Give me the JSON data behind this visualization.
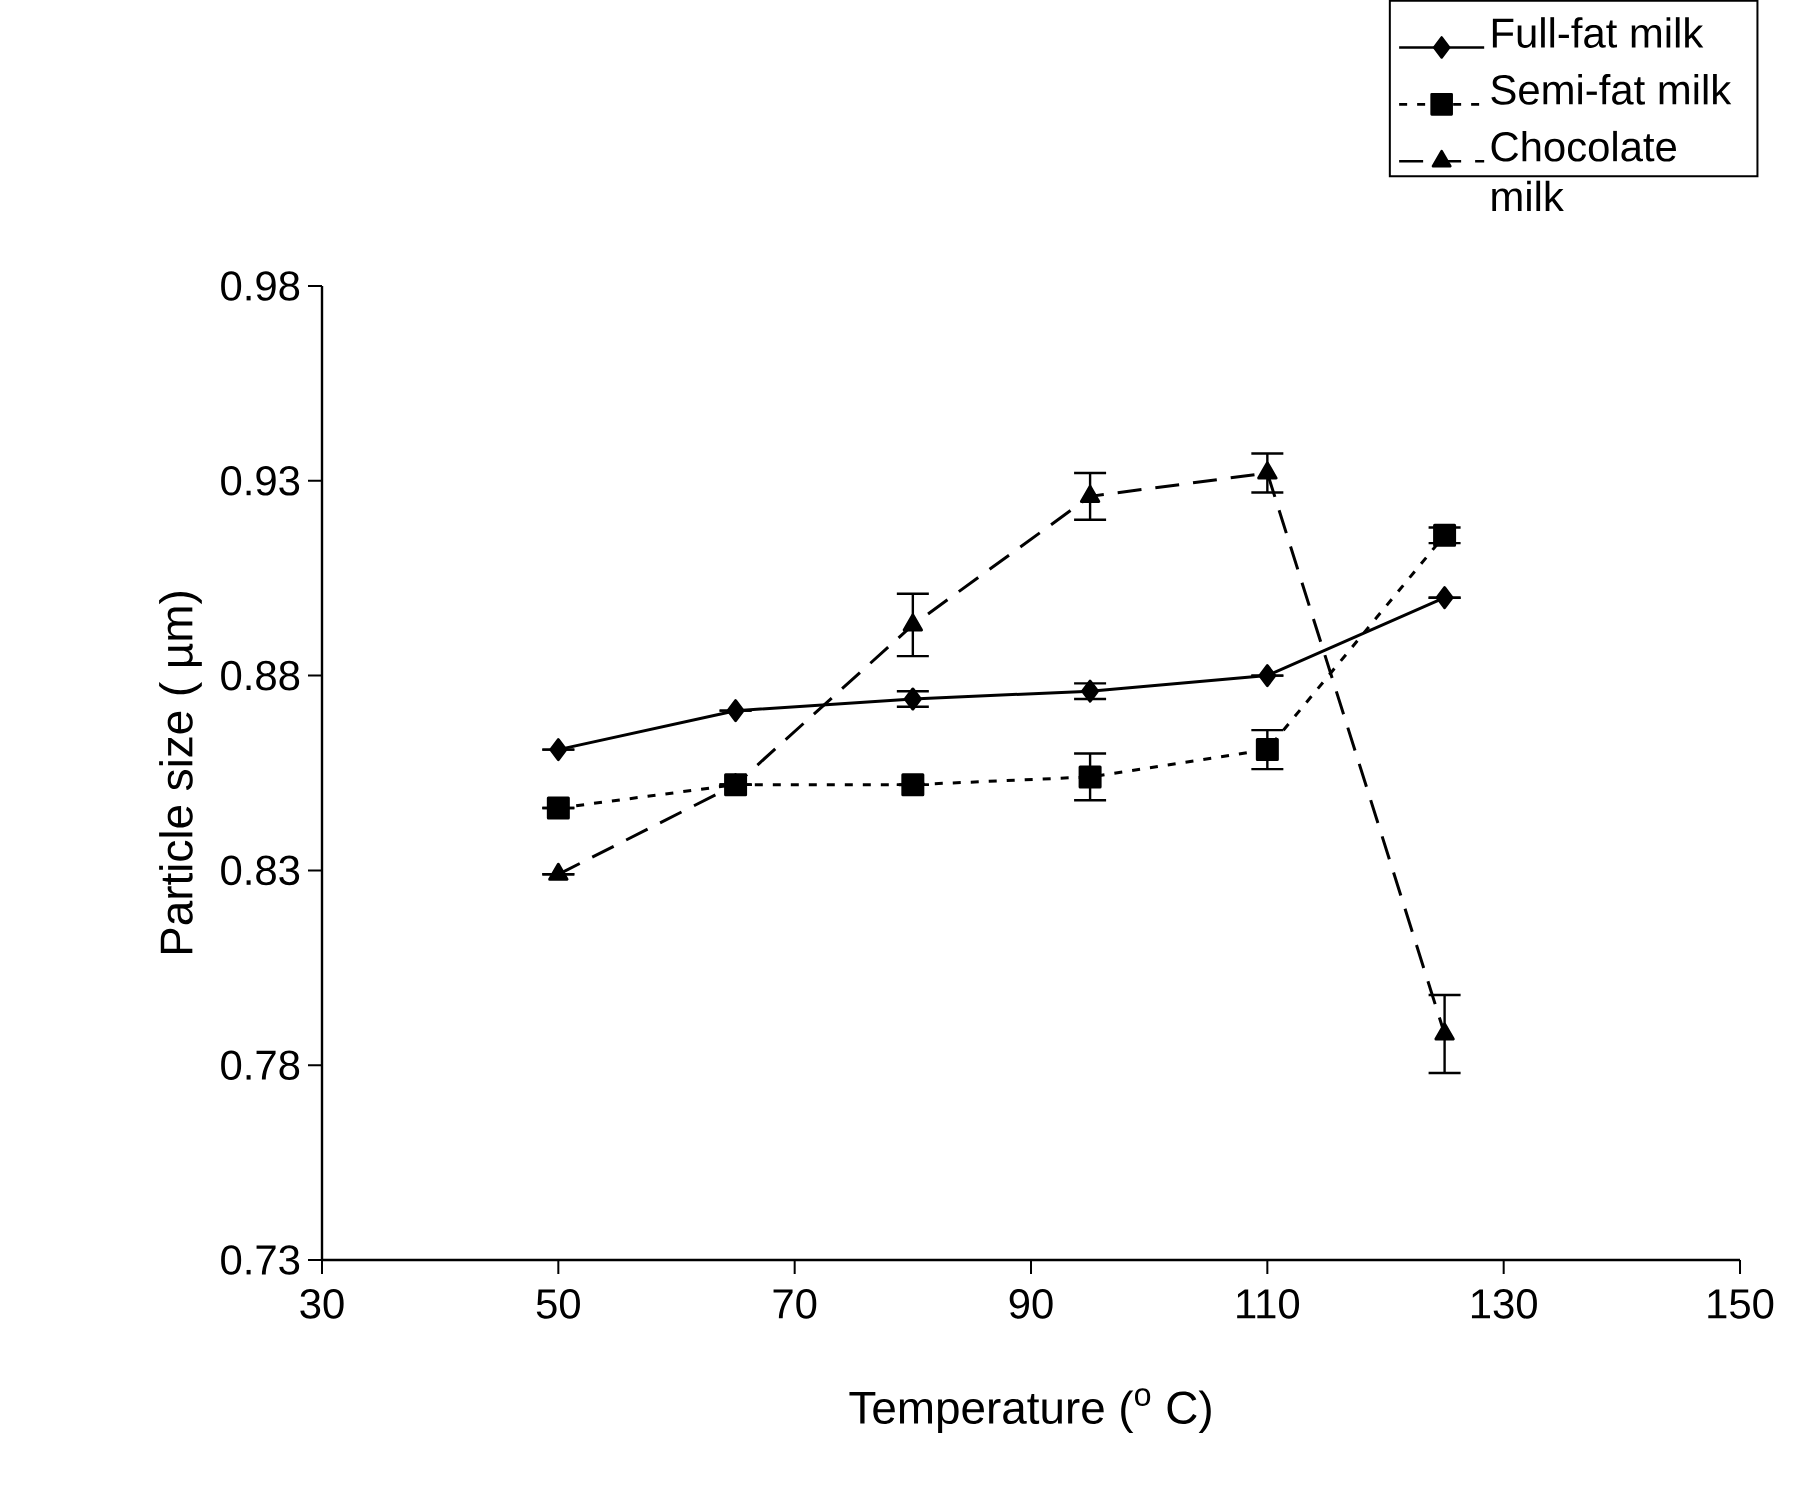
{
  "chart_data": {
    "type": "line",
    "xlabel": "Temperature ($^{o}$ C)",
    "ylabel": "Particle size ( µm)",
    "x": [
      50,
      65,
      80,
      95,
      110,
      125
    ],
    "xlim": [
      30,
      150
    ],
    "xticks": [
      30,
      50,
      70,
      90,
      110,
      130,
      150
    ],
    "ylim": [
      0.73,
      0.98
    ],
    "yticks": [
      0.73,
      0.78,
      0.83,
      0.88,
      0.93,
      0.98
    ],
    "grid": false,
    "legend": "top right",
    "series": [
      {
        "name": "Full-fat milk",
        "color": "#000000",
        "marker": "diamond",
        "line_style": "solid",
        "values": [
          0.861,
          0.871,
          0.874,
          0.876,
          0.88,
          0.9
        ],
        "errors": [
          null,
          null,
          0.002,
          0.002,
          null,
          null
        ]
      },
      {
        "name": "Semi-fat milk",
        "color": "#000000",
        "marker": "square",
        "line_style": "dotted",
        "values": [
          0.846,
          0.852,
          0.852,
          0.854,
          0.861,
          0.916
        ],
        "errors": [
          null,
          null,
          null,
          0.006,
          0.005,
          0.002
        ]
      },
      {
        "name": "Chocolate milk",
        "color": "#000000",
        "marker": "triangle",
        "line_style": "dashed",
        "values": [
          0.829,
          0.852,
          0.893,
          0.926,
          0.932,
          0.788
        ],
        "errors": [
          null,
          null,
          0.008,
          0.006,
          0.005,
          0.01
        ]
      }
    ]
  }
}
